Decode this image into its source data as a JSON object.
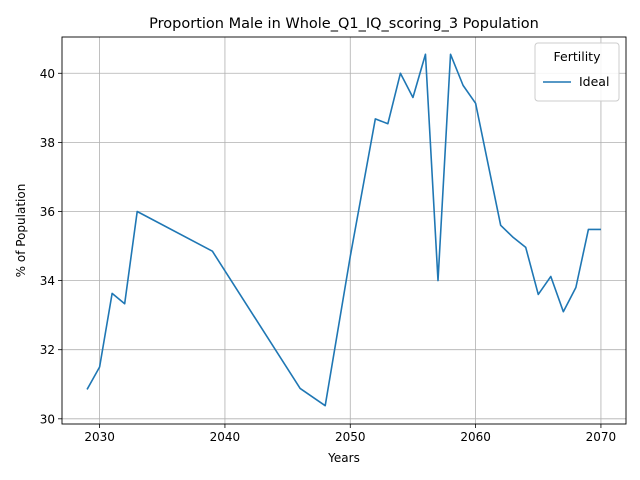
{
  "chart_data": {
    "type": "line",
    "title": "Proportion Male in Whole_Q1_IQ_scoring_3 Population",
    "xlabel": "Years",
    "ylabel": "% of Population",
    "xlim": [
      2027,
      2072
    ],
    "ylim": [
      29.85,
      41.05
    ],
    "xticks": [
      2030,
      2040,
      2050,
      2060,
      2070
    ],
    "yticks": [
      30,
      32,
      34,
      36,
      38,
      40
    ],
    "grid": true,
    "legend": {
      "title": "Fertility",
      "placement": "top-right"
    },
    "series": [
      {
        "name": "Ideal",
        "color": "#1f77b4",
        "x": [
          2029,
          2030,
          2031,
          2032,
          2033,
          2039,
          2046,
          2048,
          2050,
          2052,
          2053,
          2054,
          2055,
          2056,
          2057,
          2058,
          2059,
          2060,
          2062,
          2063,
          2064,
          2065,
          2066,
          2067,
          2068,
          2069,
          2070
        ],
        "y": [
          30.85,
          31.5,
          33.63,
          33.33,
          36.0,
          34.85,
          30.88,
          30.38,
          34.7,
          38.68,
          38.54,
          40.0,
          39.3,
          40.55,
          34.0,
          40.55,
          39.65,
          39.13,
          35.6,
          35.25,
          34.96,
          33.6,
          34.12,
          33.1,
          33.8,
          35.48,
          35.48
        ]
      }
    ]
  }
}
